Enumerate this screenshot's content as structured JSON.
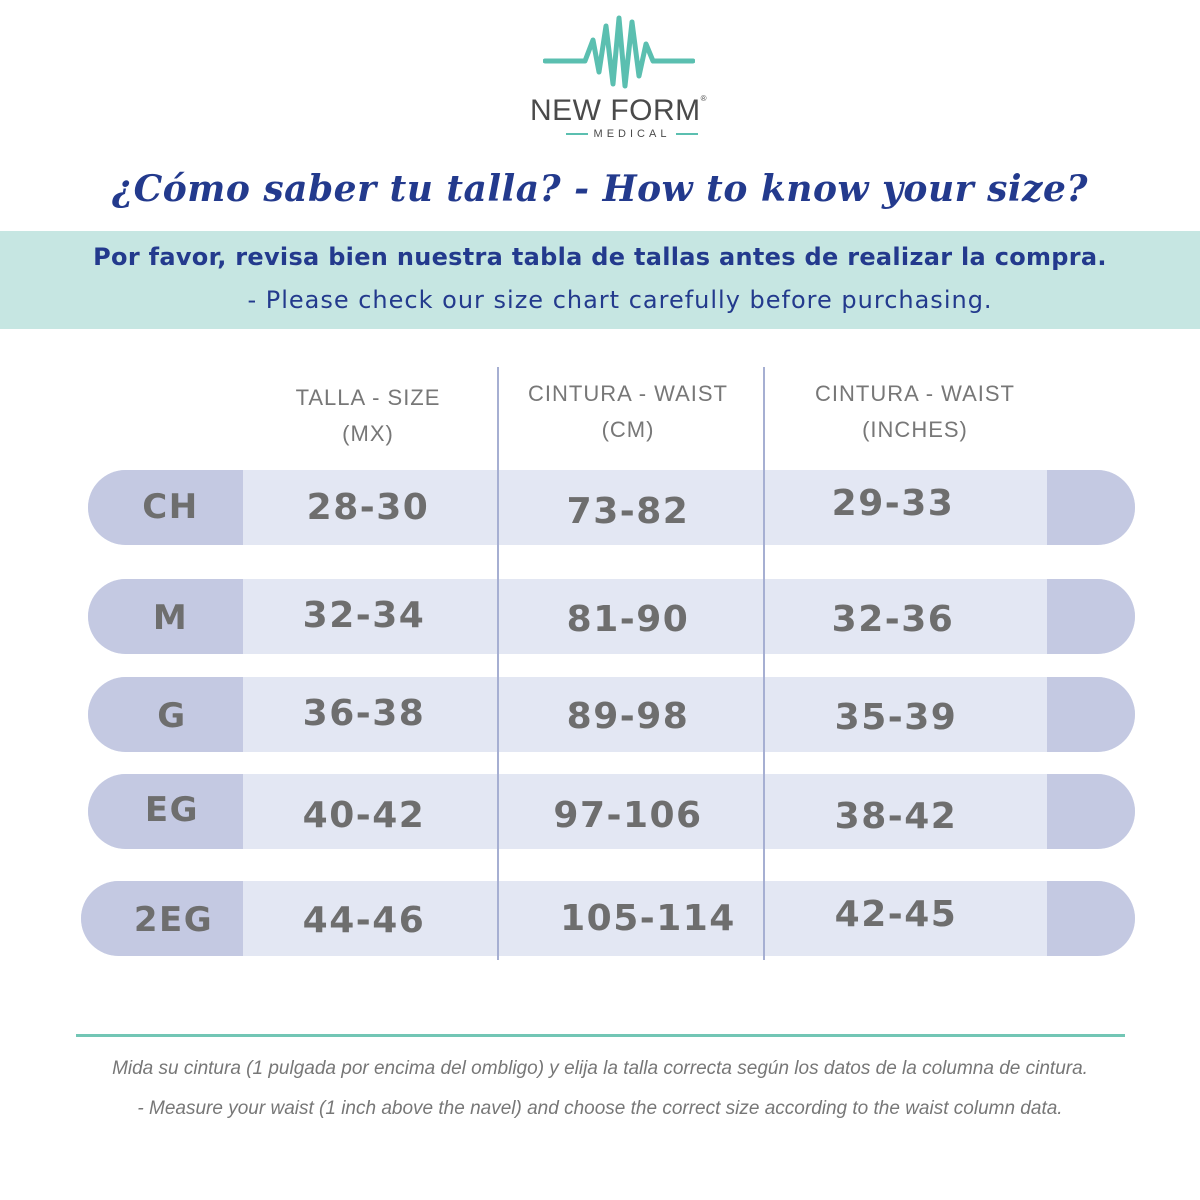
{
  "brand": {
    "name": "NEW FORM",
    "registered": "®",
    "subtitle": "MEDICAL",
    "accent_color": "#5bbfb0",
    "icon": "heartbeat-wave-icon"
  },
  "headline": "¿Cómo  saber  tu  talla? - How to know your size?",
  "notice": {
    "es": "Por favor, revisa bien nuestra tabla de tallas antes de realizar la compra.",
    "en": "- Please check our size chart carefully before purchasing."
  },
  "table": {
    "headers": [
      {
        "line1": "TALLA - SIZE",
        "line2": "(MX)"
      },
      {
        "line1": "CINTURA - WAIST",
        "line2": "(CM)"
      },
      {
        "line1": "CINTURA - WAIST",
        "line2": "(INCHES)"
      }
    ],
    "rows": [
      {
        "size": "CH",
        "mx": "28-30",
        "cm": "73-82",
        "inches": "29-33"
      },
      {
        "size": "M",
        "mx": "32-34",
        "cm": "81-90",
        "inches": "32-36"
      },
      {
        "size": "G",
        "mx": "36-38",
        "cm": "89-98",
        "inches": "35-39"
      },
      {
        "size": "EG",
        "mx": "40-42",
        "cm": "97-106",
        "inches": "38-42"
      },
      {
        "size": "2EG",
        "mx": "44-46",
        "cm": "105-114",
        "inches": "42-45"
      }
    ]
  },
  "footer": {
    "es": "Mida su cintura (1 pulgada por encima del ombligo) y elija la talla correcta según los datos de la columna de cintura.",
    "en": "- Measure your waist (1 inch above the navel) and choose the correct size according to the waist column data."
  }
}
